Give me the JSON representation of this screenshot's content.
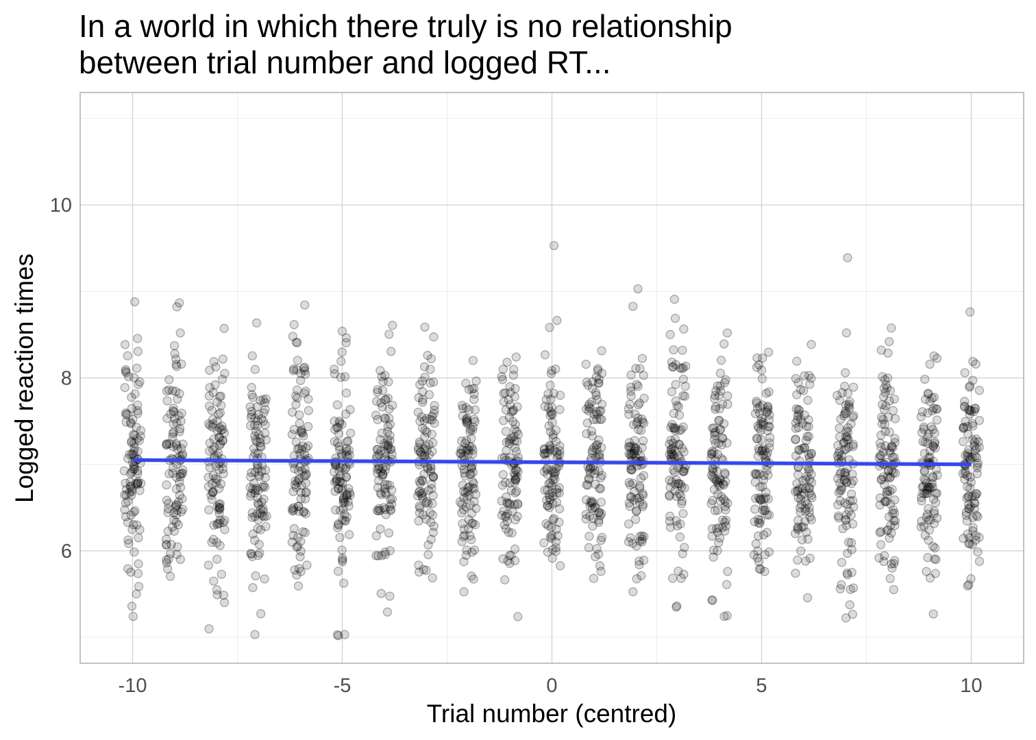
{
  "chart_data": {
    "type": "scatter",
    "title": "In a world in which there truly is no relationship",
    "subtitle": "between trial number and logged RT...",
    "xlabel": "Trial number (centred)",
    "ylabel": "Logged reaction times",
    "xlim": [
      -11.25,
      11.25
    ],
    "ylim": [
      4.7,
      11.3
    ],
    "x_ticks": [
      -10,
      -5,
      0,
      5,
      10
    ],
    "x_tick_labels": [
      "-10",
      "-5",
      "0",
      "5",
      "10"
    ],
    "y_ticks": [
      6,
      8,
      10
    ],
    "y_tick_labels": [
      "6",
      "8",
      "10"
    ],
    "grid": true,
    "legend": "none",
    "x_categories": [
      -10,
      -9,
      -8,
      -7,
      -6,
      -5,
      -4,
      -3,
      -2,
      -1,
      0,
      1,
      2,
      3,
      4,
      5,
      6,
      7,
      8,
      9,
      10
    ],
    "points_per_trial": 100,
    "point_y_mean": 7.0,
    "point_y_sd": 0.65,
    "point_y_range": [
      5.0,
      9.5
    ],
    "jitter_width": 0.4,
    "notable_points": [
      {
        "x": 0,
        "y": 9.53
      },
      {
        "x": 7,
        "y": 9.39
      },
      {
        "x": 2,
        "y": 9.03
      },
      {
        "x": -10,
        "y": 8.88
      }
    ],
    "fit_line": {
      "method": "lm",
      "x": [
        -10,
        10
      ],
      "y": [
        7.05,
        7.0
      ],
      "color": "#3446f4",
      "ribbon": true
    },
    "colors": {
      "points": "#000000",
      "point_alpha": 0.15,
      "fit": "#3446f4"
    }
  }
}
